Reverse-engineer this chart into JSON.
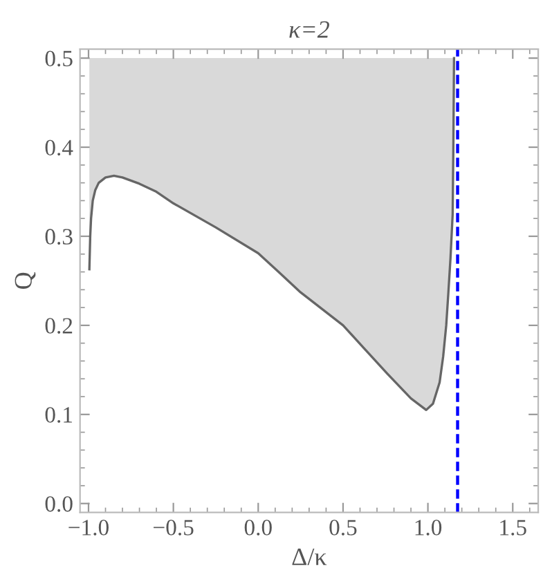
{
  "chart_data": {
    "type": "line",
    "title": "κ=2",
    "xlabel": "Δ/κ",
    "ylabel": "Q",
    "series": [
      {
        "color": "#666666",
        "x": [
          -0.995,
          -0.99,
          -0.985,
          -0.975,
          -0.96,
          -0.94,
          -0.9,
          -0.85,
          -0.8,
          -0.7,
          -0.6,
          -0.5,
          -0.25,
          0.0,
          0.12,
          0.25,
          0.5,
          0.62,
          0.76,
          0.9,
          0.99,
          1.03,
          1.069,
          1.09,
          1.108,
          1.12,
          1.133,
          1.146,
          1.15,
          1.154
        ],
        "values": [
          0.263,
          0.3,
          0.32,
          0.34,
          0.352,
          0.36,
          0.366,
          0.368,
          0.366,
          0.359,
          0.35,
          0.337,
          0.31,
          0.281,
          0.26,
          0.237,
          0.2,
          0.175,
          0.146,
          0.118,
          0.105,
          0.112,
          0.136,
          0.165,
          0.2,
          0.235,
          0.275,
          0.325,
          0.4,
          0.5
        ],
        "lower": [
          0.263,
          0.3,
          0.32,
          0.34,
          0.352,
          0.36,
          0.366,
          0.368,
          0.366,
          0.359,
          0.35,
          0.337,
          0.31,
          0.281,
          0.26,
          0.237,
          0.2,
          0.175,
          0.146,
          0.118,
          0.105,
          0.112,
          0.136,
          0.165,
          0.2,
          0.235,
          0.275,
          0.325,
          0.4,
          0.5
        ],
        "upper": [
          0.5,
          0.5,
          0.5,
          0.5,
          0.5,
          0.5,
          0.5,
          0.5,
          0.5,
          0.5,
          0.5,
          0.5,
          0.5,
          0.5,
          0.5,
          0.5,
          0.5,
          0.5,
          0.5,
          0.5,
          0.5,
          0.5,
          0.5,
          0.5,
          0.5,
          0.5,
          0.5,
          0.5,
          0.5,
          0.5
        ]
      }
    ],
    "ref_lines": [
      {
        "axis": "x",
        "value": 1.175,
        "color": "#0000ff",
        "line_style": "dashed"
      }
    ],
    "xlim": [
      -1.05,
      1.65
    ],
    "ylim": [
      -0.01,
      0.51
    ],
    "xticks": [
      {
        "value": -1.0,
        "label": "−1.0"
      },
      {
        "value": -0.5,
        "label": "−0.5"
      },
      {
        "value": 0.0,
        "label": "0.0"
      },
      {
        "value": 0.5,
        "label": "0.5"
      },
      {
        "value": 1.0,
        "label": "1.0"
      },
      {
        "value": 1.5,
        "label": "1.5"
      }
    ],
    "yticks": [
      {
        "value": 0.0,
        "label": "0.0"
      },
      {
        "value": 0.1,
        "label": "0.1"
      },
      {
        "value": 0.2,
        "label": "0.2"
      },
      {
        "value": 0.3,
        "label": "0.3"
      },
      {
        "value": 0.4,
        "label": "0.4"
      },
      {
        "value": 0.5,
        "label": "0.5"
      }
    ],
    "grid": false,
    "legend": false
  }
}
